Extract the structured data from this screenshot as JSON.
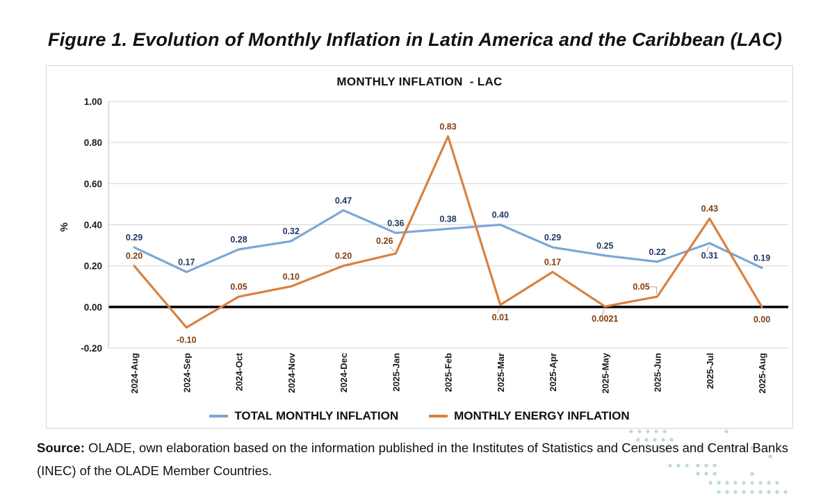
{
  "figure_title": "Figure 1. Evolution of Monthly Inflation in Latin America and the Caribbean (LAC)",
  "chart_data": {
    "type": "line",
    "title": "MONTHLY INFLATION  - LAC",
    "xlabel": "",
    "ylabel": "%",
    "ylim": [
      -0.2,
      1.0
    ],
    "ytick_labels": [
      "1.00",
      "0.80",
      "0.60",
      "0.40",
      "0.20",
      "0.00",
      "-0.20"
    ],
    "grid": true,
    "legend_position": "bottom",
    "categories": [
      "2024-Aug",
      "2024-Sep",
      "2024-Oct",
      "2024-Nov",
      "2024-Dec",
      "2025-Jan",
      "2025-Feb",
      "2025-Mar",
      "2025-Apr",
      "2025-May",
      "2025-Jun",
      "2025-Jul",
      "2025-Aug"
    ],
    "series": [
      {
        "name": "TOTAL MONTHLY INFLATION",
        "color": "#7CA6D8",
        "label_color": "#1F3864",
        "values": [
          0.29,
          0.17,
          0.28,
          0.32,
          0.47,
          0.36,
          0.38,
          0.4,
          0.29,
          0.25,
          0.22,
          0.31,
          0.19
        ],
        "labels": [
          "0.29",
          "0.17",
          "0.28",
          "0.32",
          "0.47",
          "0.36",
          "0.38",
          "0.40",
          "0.29",
          "0.25",
          "0.22",
          "0.31",
          "0.19"
        ],
        "label_pos": [
          "a",
          "a",
          "a",
          "a",
          "a",
          "a",
          "a",
          "a",
          "a",
          "a",
          "a",
          "bl",
          "a"
        ]
      },
      {
        "name": "MONTHLY ENERGY INFLATION",
        "color": "#D9813F",
        "label_color": "#843C0C",
        "values": [
          0.2,
          -0.1,
          0.05,
          0.1,
          0.2,
          0.26,
          0.83,
          0.01,
          0.17,
          0.0021,
          0.05,
          0.43,
          0.0
        ],
        "labels": [
          "0.20",
          "-0.10",
          "0.05",
          "0.10",
          "0.20",
          "0.26",
          "0.83",
          "0.01",
          "0.17",
          "0.0021",
          "0.05",
          "0.43",
          "0.00"
        ],
        "label_pos": [
          "a",
          "b",
          "a",
          "a",
          "a",
          "all",
          "a",
          "bl",
          "a",
          "bl",
          "alb",
          "a",
          "b"
        ]
      }
    ]
  },
  "source": {
    "prefix": "Source:",
    "text": " OLADE, own elaboration based on the information published in the Institutes of Statistics and Censuses and Central Banks (INEC) of the OLADE Member Countries."
  },
  "decor": {
    "dot_color": "#BCE0CA"
  }
}
